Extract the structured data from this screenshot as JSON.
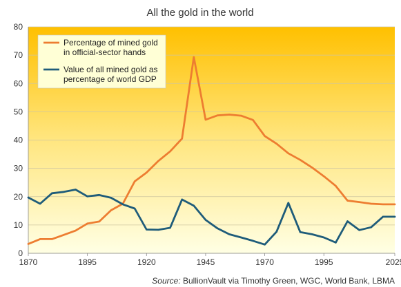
{
  "chart_data": {
    "type": "line",
    "title": "All the gold in the world",
    "xlabel": "",
    "ylabel": "",
    "xlim": [
      1870,
      2025
    ],
    "ylim": [
      0,
      80
    ],
    "x_ticks": [
      1870,
      1895,
      1920,
      1945,
      1970,
      1995,
      2025
    ],
    "y_ticks": [
      0,
      10,
      20,
      30,
      40,
      50,
      60,
      70,
      80
    ],
    "grid": "horizontal",
    "legend_position": "top-left",
    "background": "yellow-gradient",
    "series": [
      {
        "name": "Percentage of mined gold in official-sector hands",
        "legend_lines": [
          "Percentage of mined gold",
          "in official-sector hands"
        ],
        "color": "#ED7D31",
        "x": [
          1870,
          1875,
          1880,
          1885,
          1890,
          1895,
          1900,
          1905,
          1910,
          1915,
          1920,
          1925,
          1930,
          1935,
          1940,
          1945,
          1950,
          1955,
          1960,
          1965,
          1970,
          1975,
          1980,
          1985,
          1990,
          1995,
          2000,
          2005,
          2010,
          2015,
          2020,
          2025
        ],
        "values": [
          3.3,
          5.0,
          5.0,
          6.5,
          8.0,
          10.5,
          11.2,
          15.2,
          17.5,
          25.4,
          28.5,
          32.6,
          36.0,
          40.5,
          69.3,
          47.2,
          48.7,
          49.0,
          48.6,
          47.1,
          41.4,
          38.7,
          35.3,
          33.0,
          30.3,
          27.2,
          23.8,
          18.6,
          18.1,
          17.5,
          17.3,
          17.3
        ]
      },
      {
        "name": "Value of all mined gold as percentage of world GDP",
        "legend_lines": [
          "Value of all mined gold as",
          "percentage of world GDP"
        ],
        "color": "#1F5C7A",
        "x": [
          1870,
          1875,
          1880,
          1885,
          1890,
          1895,
          1900,
          1905,
          1910,
          1915,
          1920,
          1925,
          1930,
          1935,
          1940,
          1945,
          1950,
          1955,
          1960,
          1965,
          1970,
          1975,
          1980,
          1985,
          1990,
          1995,
          2000,
          2005,
          2010,
          2015,
          2020,
          2025
        ],
        "values": [
          19.7,
          17.5,
          21.2,
          21.7,
          22.5,
          20.1,
          20.6,
          19.6,
          17.3,
          15.8,
          8.4,
          8.3,
          9.0,
          19.0,
          16.8,
          11.8,
          8.8,
          6.7,
          5.6,
          4.4,
          3.1,
          7.6,
          17.8,
          7.5,
          6.7,
          5.6,
          3.8,
          11.3,
          8.2,
          9.2,
          12.9,
          12.9
        ]
      }
    ],
    "source_label": "Source:",
    "source_text": " BullionVault via Timothy Green, WGC, World Bank, LBMA"
  }
}
